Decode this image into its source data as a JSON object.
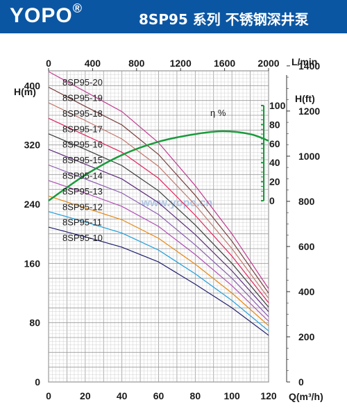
{
  "header": {
    "brand": "YOPO",
    "brand_mark": "®",
    "title": "8SP95 系列 不锈钢深井泵"
  },
  "watermark": "www.yopo.cn",
  "chart_data": {
    "type": "line",
    "x_bottom": {
      "label": "Q(m³/h)",
      "ticks": [
        0,
        20,
        40,
        60,
        80,
        100,
        120
      ],
      "range": [
        0,
        120
      ]
    },
    "x_top": {
      "label": "L/min",
      "ticks": [
        0,
        400,
        800,
        1200,
        1600,
        2000
      ],
      "range": [
        0,
        2000
      ]
    },
    "y_left": {
      "label": "H(m)",
      "ticks": [
        0,
        80,
        160,
        240,
        320,
        400
      ],
      "range": [
        0,
        420
      ]
    },
    "y_right": {
      "label": "H(ft)",
      "ticks": [
        0,
        200,
        400,
        600,
        800,
        1000,
        1200,
        1400
      ]
    },
    "y_eff": {
      "label": "η %",
      "ticks": [
        0,
        20,
        40,
        60,
        80,
        100
      ],
      "range": [
        0,
        100
      ]
    },
    "grid": true,
    "x": [
      0,
      20,
      40,
      60,
      80,
      100,
      120
    ],
    "series": [
      {
        "name": "8SP95-20",
        "color": "#c0398f",
        "values": [
          419,
          392,
          365,
          323,
          265,
          200,
          126
        ]
      },
      {
        "name": "8SP95-19",
        "color": "#7a3c3c",
        "values": [
          398,
          372,
          347,
          307,
          252,
          190,
          120
        ]
      },
      {
        "name": "8SP95-18",
        "color": "#c2786e",
        "values": [
          377,
          353,
          328,
          291,
          239,
          180,
          113
        ]
      },
      {
        "name": "8SP95-17",
        "color": "#e0215a",
        "values": [
          356,
          333,
          310,
          275,
          225,
          170,
          107
        ]
      },
      {
        "name": "8SP95-16",
        "color": "#3b3b3b",
        "values": [
          335,
          314,
          292,
          258,
          212,
          160,
          101
        ]
      },
      {
        "name": "8SP95-15",
        "color": "#5a2a7a",
        "values": [
          314,
          294,
          274,
          242,
          199,
          150,
          95
        ]
      },
      {
        "name": "8SP95-14",
        "color": "#8a5bb0",
        "values": [
          293,
          274,
          255,
          226,
          185,
          140,
          88
        ]
      },
      {
        "name": "8SP95-13",
        "color": "#b04fb5",
        "values": [
          272,
          255,
          237,
          210,
          172,
          130,
          82
        ]
      },
      {
        "name": "8SP95-12",
        "color": "#e6860f",
        "values": [
          251,
          235,
          219,
          194,
          159,
          120,
          76
        ]
      },
      {
        "name": "8SP95-11",
        "color": "#1c9cd8",
        "values": [
          230,
          216,
          201,
          178,
          146,
          110,
          69
        ]
      },
      {
        "name": "8SP95-10",
        "color": "#1f1f6e",
        "values": [
          209,
          196,
          182,
          162,
          132,
          100,
          63
        ]
      }
    ],
    "efficiency": {
      "name": "η %",
      "color": "#1a9a3c",
      "x": [
        0,
        20,
        40,
        60,
        80,
        95,
        110,
        120
      ],
      "values": [
        0,
        27,
        48,
        62,
        70,
        73,
        70,
        63
      ]
    }
  }
}
